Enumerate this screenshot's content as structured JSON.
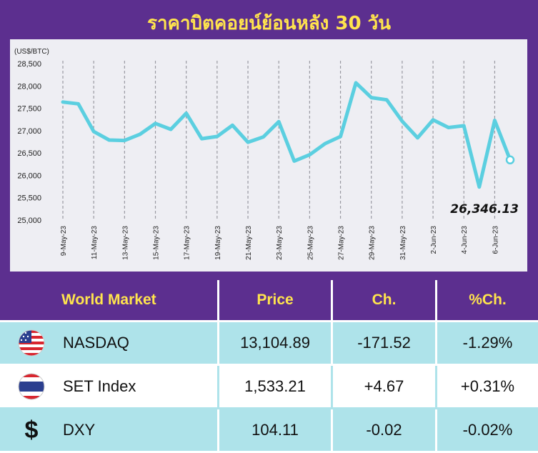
{
  "title": "ราคาบิตคอยน์ย้อนหลัง 30 วัน",
  "chart_data": {
    "type": "line",
    "ylabel": "(US$/BTC)",
    "ylim": [
      25000,
      28500
    ],
    "yticks": [
      "28,500",
      "28,000",
      "27,500",
      "27,000",
      "26,500",
      "26,000",
      "25,500",
      "25,000"
    ],
    "xtick_labels": [
      "9-May-23",
      "11-May-23",
      "13-May-23",
      "15-May-23",
      "17-May-23",
      "19-May-23",
      "21-May-23",
      "23-May-23",
      "25-May-23",
      "27-May-23",
      "29-May-23",
      "31-May-23",
      "2-Jun-23",
      "4-Jun-23",
      "6-Jun-23"
    ],
    "x": [
      "9-May-23",
      "10-May-23",
      "11-May-23",
      "12-May-23",
      "13-May-23",
      "14-May-23",
      "15-May-23",
      "16-May-23",
      "17-May-23",
      "18-May-23",
      "19-May-23",
      "20-May-23",
      "21-May-23",
      "22-May-23",
      "23-May-23",
      "24-May-23",
      "25-May-23",
      "26-May-23",
      "27-May-23",
      "28-May-23",
      "29-May-23",
      "30-May-23",
      "31-May-23",
      "1-Jun-23",
      "2-Jun-23",
      "3-Jun-23",
      "4-Jun-23",
      "5-Jun-23",
      "6-Jun-23",
      "7-Jun-23"
    ],
    "series": [
      {
        "values": [
          27640,
          27600,
          26980,
          26790,
          26780,
          26920,
          27160,
          27030,
          27390,
          26820,
          26870,
          27120,
          26740,
          26860,
          27200,
          26320,
          26460,
          26710,
          26870,
          28070,
          27740,
          27690,
          27210,
          26840,
          27240,
          27070,
          27110,
          25740,
          27230,
          26346.13
        ]
      }
    ],
    "last_value_label": "26,346.13",
    "line_color": "#5bcfe0",
    "grid": "vertical dashed"
  },
  "table": {
    "headers": [
      "World Market",
      "Price",
      "Ch.",
      "%Ch."
    ],
    "rows": [
      {
        "icon": "us-flag-icon",
        "name": "NASDAQ",
        "price": "13,104.89",
        "ch": "-171.52",
        "pct": "-1.29%"
      },
      {
        "icon": "thai-flag-icon",
        "name": "SET Index",
        "price": "1,533.21",
        "ch": "+4.67",
        "pct": "+0.31%"
      },
      {
        "icon": "dollar-icon",
        "symbol": "$",
        "name": "DXY",
        "price": "104.11",
        "ch": "-0.02",
        "pct": "-0.02%"
      }
    ]
  },
  "colors": {
    "panel": "#5c2f8f",
    "title": "#ffe44d",
    "row_alt": "#aee3ea"
  }
}
